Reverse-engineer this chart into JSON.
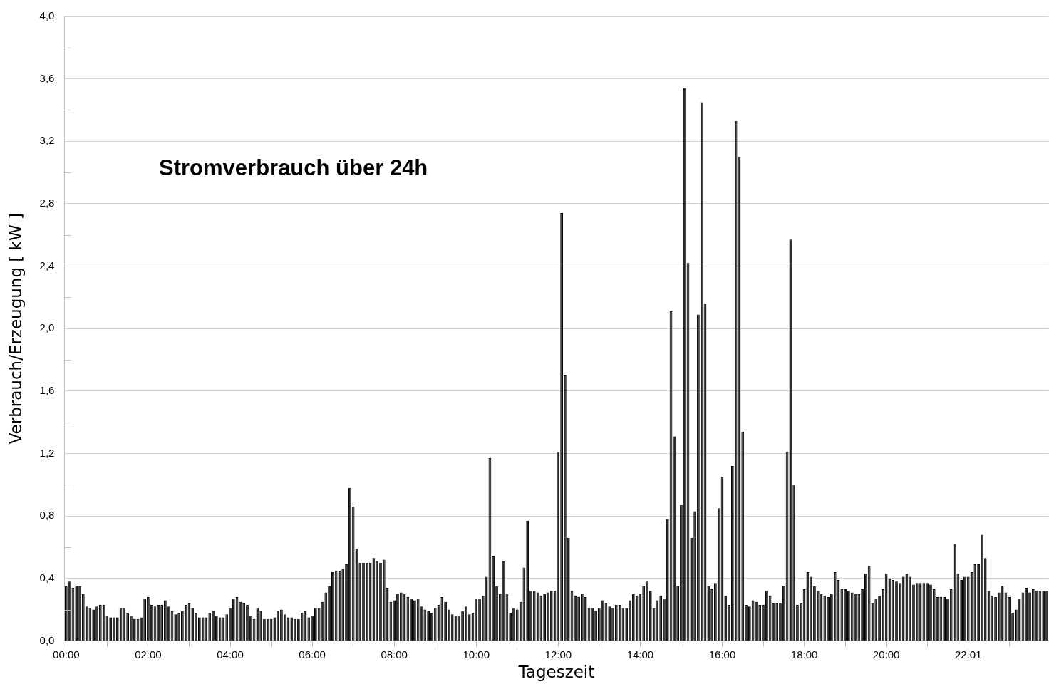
{
  "chart_data": {
    "type": "bar",
    "title": "Stromverbrauch über 24h",
    "xlabel": "Tageszeit",
    "ylabel": "Verbrauch/Erzeugung [ kW ]",
    "color": "#262626",
    "grid": "y",
    "ylim": [
      0,
      4.0
    ],
    "yticks": [
      {
        "value": 0,
        "label": "0,0"
      },
      {
        "value": 0.2,
        "label": null
      },
      {
        "value": 0.4,
        "label": "0,4"
      },
      {
        "value": 0.6,
        "label": null
      },
      {
        "value": 0.8,
        "label": "0,8"
      },
      {
        "value": 1.0,
        "label": null
      },
      {
        "value": 1.2,
        "label": "1,2"
      },
      {
        "value": 1.4,
        "label": null
      },
      {
        "value": 1.6,
        "label": "1,6"
      },
      {
        "value": 1.8,
        "label": null
      },
      {
        "value": 2.0,
        "label": "2,0"
      },
      {
        "value": 2.2,
        "label": null
      },
      {
        "value": 2.4,
        "label": "2,4"
      },
      {
        "value": 2.6,
        "label": null
      },
      {
        "value": 2.8,
        "label": "2,8"
      },
      {
        "value": 3.0,
        "label": null
      },
      {
        "value": 3.2,
        "label": "3,2"
      },
      {
        "value": 3.4,
        "label": null
      },
      {
        "value": 3.6,
        "label": "3,6"
      },
      {
        "value": 3.8,
        "label": null
      },
      {
        "value": 4.0,
        "label": "4,0"
      }
    ],
    "categories": [
      "00:00",
      null,
      null,
      null,
      null,
      null,
      null,
      null,
      null,
      null,
      null,
      null,
      null,
      null,
      null,
      null,
      null,
      null,
      null,
      null,
      null,
      null,
      null,
      null,
      "02:00",
      null,
      null,
      null,
      null,
      null,
      null,
      null,
      null,
      null,
      null,
      null,
      null,
      null,
      null,
      null,
      null,
      null,
      null,
      null,
      null,
      null,
      null,
      null,
      "04:00",
      null,
      null,
      null,
      null,
      null,
      null,
      null,
      null,
      null,
      null,
      null,
      null,
      null,
      null,
      null,
      null,
      null,
      null,
      null,
      null,
      null,
      null,
      null,
      "06:00",
      null,
      null,
      null,
      null,
      null,
      null,
      null,
      null,
      null,
      null,
      null,
      null,
      null,
      null,
      null,
      null,
      null,
      null,
      null,
      null,
      null,
      null,
      null,
      "08:00",
      null,
      null,
      null,
      null,
      null,
      null,
      null,
      null,
      null,
      null,
      null,
      null,
      null,
      null,
      null,
      null,
      null,
      null,
      null,
      null,
      null,
      null,
      null,
      "10:00",
      null,
      null,
      null,
      null,
      null,
      null,
      null,
      null,
      null,
      null,
      null,
      null,
      null,
      null,
      null,
      null,
      null,
      null,
      null,
      null,
      null,
      null,
      null,
      "12:00",
      null,
      null,
      null,
      null,
      null,
      null,
      null,
      null,
      null,
      null,
      null,
      null,
      null,
      null,
      null,
      null,
      null,
      null,
      null,
      null,
      null,
      null,
      null,
      "14:00",
      null,
      null,
      null,
      null,
      null,
      null,
      null,
      null,
      null,
      null,
      null,
      null,
      null,
      null,
      null,
      null,
      null,
      null,
      null,
      null,
      null,
      null,
      null,
      "16:00",
      null,
      null,
      null,
      null,
      null,
      null,
      null,
      null,
      null,
      null,
      null,
      null,
      null,
      null,
      null,
      null,
      null,
      null,
      null,
      null,
      null,
      null,
      null,
      "18:00",
      null,
      null,
      null,
      null,
      null,
      null,
      null,
      null,
      null,
      null,
      null,
      null,
      null,
      null,
      null,
      null,
      null,
      null,
      null,
      null,
      null,
      null,
      null,
      "20:00",
      null,
      null,
      null,
      null,
      null,
      null,
      null,
      null,
      null,
      null,
      null,
      null,
      null,
      null,
      null,
      null,
      null,
      null,
      null,
      null,
      null,
      null,
      null,
      "22:01",
      null,
      null,
      null,
      null,
      null,
      null,
      null,
      null,
      null,
      null,
      null,
      null,
      null,
      null,
      null,
      null,
      null,
      null,
      null,
      null,
      null,
      null,
      null
    ],
    "values": [
      0.35,
      0.38,
      0.34,
      0.35,
      0.35,
      0.3,
      0.22,
      0.21,
      0.2,
      0.22,
      0.23,
      0.23,
      0.16,
      0.15,
      0.15,
      0.15,
      0.21,
      0.21,
      0.18,
      0.16,
      0.14,
      0.14,
      0.15,
      0.27,
      0.28,
      0.23,
      0.22,
      0.23,
      0.23,
      0.26,
      0.22,
      0.19,
      0.17,
      0.18,
      0.19,
      0.23,
      0.24,
      0.21,
      0.18,
      0.15,
      0.15,
      0.15,
      0.18,
      0.19,
      0.16,
      0.15,
      0.15,
      0.17,
      0.21,
      0.27,
      0.28,
      0.25,
      0.24,
      0.23,
      0.16,
      0.14,
      0.21,
      0.19,
      0.14,
      0.14,
      0.14,
      0.15,
      0.19,
      0.2,
      0.17,
      0.15,
      0.15,
      0.14,
      0.14,
      0.18,
      0.19,
      0.15,
      0.16,
      0.21,
      0.21,
      0.25,
      0.31,
      0.35,
      0.44,
      0.45,
      0.45,
      0.46,
      0.49,
      0.98,
      0.86,
      0.59,
      0.5,
      0.5,
      0.5,
      0.5,
      0.53,
      0.51,
      0.5,
      0.52,
      0.34,
      0.25,
      0.26,
      0.3,
      0.31,
      0.3,
      0.28,
      0.27,
      0.26,
      0.27,
      0.22,
      0.2,
      0.19,
      0.18,
      0.21,
      0.23,
      0.28,
      0.25,
      0.2,
      0.17,
      0.16,
      0.16,
      0.19,
      0.22,
      0.17,
      0.18,
      0.27,
      0.27,
      0.29,
      0.41,
      1.17,
      0.54,
      0.35,
      0.3,
      0.51,
      0.3,
      0.18,
      0.21,
      0.2,
      0.25,
      0.47,
      0.77,
      0.32,
      0.32,
      0.31,
      0.29,
      0.3,
      0.31,
      0.32,
      0.32,
      1.21,
      2.74,
      1.7,
      0.66,
      0.32,
      0.29,
      0.28,
      0.3,
      0.28,
      0.21,
      0.21,
      0.19,
      0.21,
      0.26,
      0.24,
      0.22,
      0.21,
      0.23,
      0.23,
      0.21,
      0.21,
      0.26,
      0.3,
      0.29,
      0.3,
      0.35,
      0.38,
      0.32,
      0.21,
      0.26,
      0.29,
      0.27,
      0.78,
      2.11,
      1.31,
      0.35,
      0.87,
      3.54,
      2.42,
      0.66,
      0.83,
      2.09,
      3.45,
      2.16,
      0.35,
      0.33,
      0.37,
      0.85,
      1.05,
      0.29,
      0.23,
      1.12,
      3.33,
      3.1,
      1.34,
      0.23,
      0.22,
      0.26,
      0.25,
      0.23,
      0.23,
      0.32,
      0.29,
      0.24,
      0.24,
      0.24,
      0.35,
      1.21,
      2.57,
      1.0,
      0.23,
      0.24,
      0.33,
      0.44,
      0.41,
      0.35,
      0.32,
      0.3,
      0.29,
      0.28,
      0.3,
      0.44,
      0.39,
      0.33,
      0.33,
      0.32,
      0.31,
      0.3,
      0.3,
      0.33,
      0.43,
      0.48,
      0.24,
      0.27,
      0.29,
      0.33,
      0.43,
      0.4,
      0.39,
      0.38,
      0.37,
      0.41,
      0.43,
      0.41,
      0.36,
      0.37,
      0.37,
      0.37,
      0.37,
      0.36,
      0.33,
      0.28,
      0.28,
      0.28,
      0.27,
      0.33,
      0.62,
      0.43,
      0.39,
      0.41,
      0.41,
      0.44,
      0.49,
      0.49,
      0.68,
      0.53,
      0.32,
      0.29,
      0.28,
      0.31,
      0.35,
      0.31,
      0.28,
      0.18,
      0.2,
      0.27,
      0.31,
      0.34,
      0.31,
      0.33,
      0.32,
      0.32,
      0.32,
      0.32
    ]
  }
}
